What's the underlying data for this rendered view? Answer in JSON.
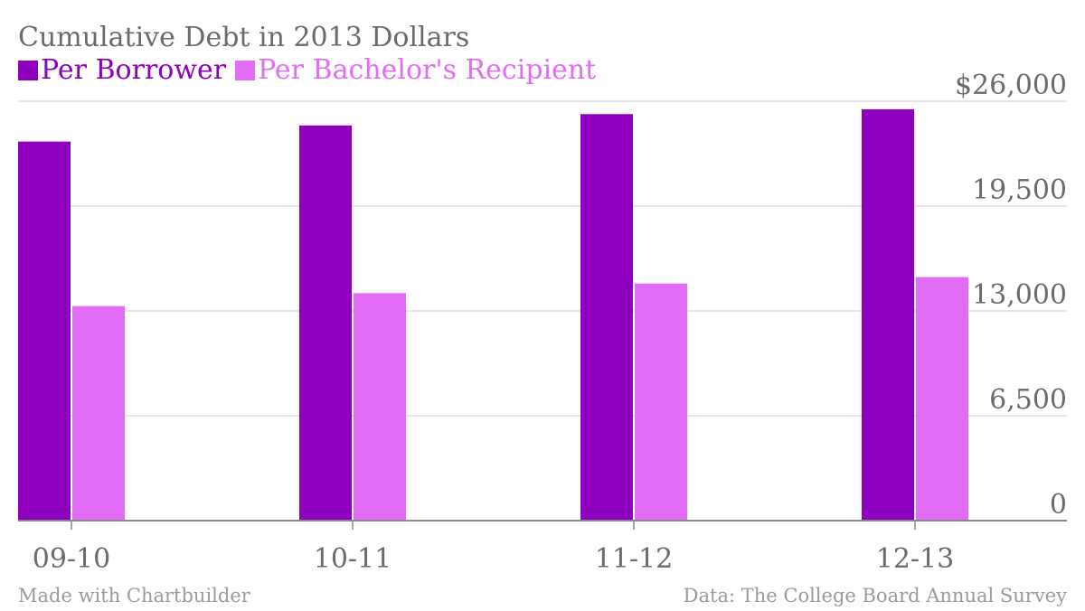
{
  "chart_data": {
    "type": "bar",
    "title": "Cumulative Debt in 2013 Dollars",
    "categories": [
      "09-10",
      "10-11",
      "11-12",
      "12-13"
    ],
    "series": [
      {
        "name": "Per Borrower",
        "color": "#8e00be",
        "values": [
          23500,
          24500,
          25200,
          25500
        ]
      },
      {
        "name": "Per Bachelor's Recipient",
        "color": "#e36cf6",
        "values": [
          13300,
          14100,
          14700,
          15100
        ]
      }
    ],
    "y_ticks": [
      {
        "value": 26000,
        "label": "$26,000"
      },
      {
        "value": 19500,
        "label": "19,500"
      },
      {
        "value": 13000,
        "label": "13,000"
      },
      {
        "value": 6500,
        "label": "6,500"
      },
      {
        "value": 0,
        "label": "0"
      }
    ],
    "ylim": [
      0,
      26000
    ],
    "grid": true,
    "legend_position": "top-left",
    "axis_side": "right"
  },
  "footer": {
    "credit": "Made with Chartbuilder",
    "source": "Data: The College Board Annual Survey"
  }
}
